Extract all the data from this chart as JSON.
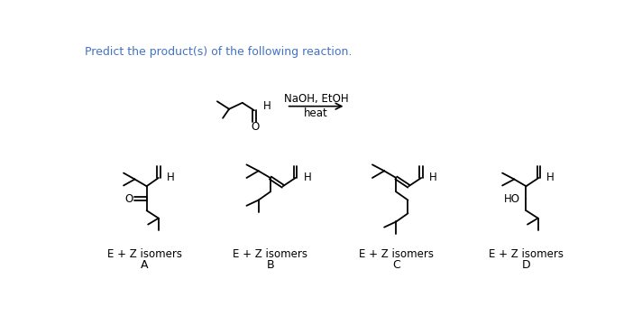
{
  "title_text": "Predict the product(s) of the following reaction.",
  "title_color": "#4472C4",
  "title_fontsize": 9,
  "reagent_line1": "NaOH, EtOH",
  "reagent_line2": "heat",
  "background_color": "#ffffff",
  "label_A": "A",
  "label_B": "B",
  "label_C": "C",
  "label_D": "D",
  "ez_label": "E + Z isomers"
}
